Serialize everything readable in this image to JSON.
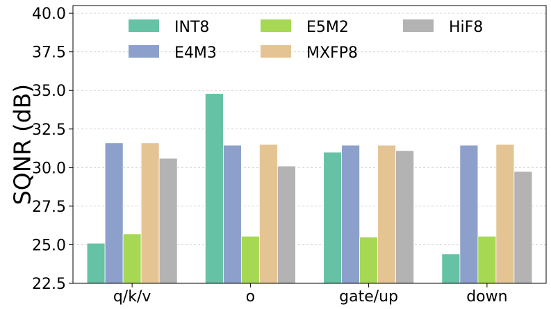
{
  "chart_data": {
    "type": "bar",
    "title": "",
    "xlabel": "",
    "ylabel": "SQNR (dB)",
    "categories": [
      "q/k/v",
      "o",
      "gate/up",
      "down"
    ],
    "ylim": [
      22.5,
      40.5
    ],
    "yticks": [
      "22.5",
      "25.0",
      "27.5",
      "30.0",
      "32.5",
      "35.0",
      "37.5",
      "40.0"
    ],
    "grid": true,
    "legend_position": "top",
    "series": [
      {
        "name": "INT8",
        "color": "#66c2a5",
        "values": [
          25.1,
          34.8,
          31.0,
          24.4
        ]
      },
      {
        "name": "E4M3",
        "color": "#8da0cb",
        "values": [
          31.6,
          31.45,
          31.45,
          31.45
        ]
      },
      {
        "name": "E5M2",
        "color": "#a6d854",
        "values": [
          25.7,
          25.55,
          25.5,
          25.55
        ]
      },
      {
        "name": "MXFP8",
        "color": "#e5c494",
        "values": [
          31.6,
          31.5,
          31.45,
          31.5
        ]
      },
      {
        "name": "HiF8",
        "color": "#b3b3b3",
        "values": [
          30.6,
          30.1,
          31.1,
          29.75
        ]
      }
    ]
  }
}
